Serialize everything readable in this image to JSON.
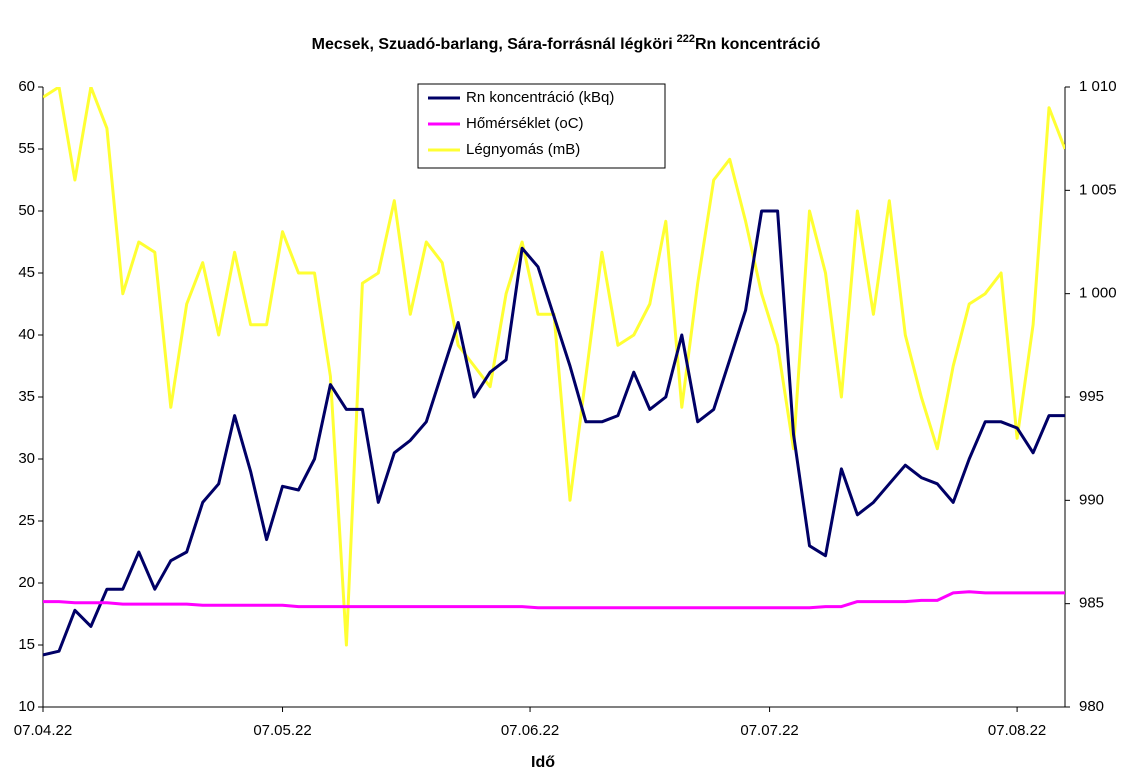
{
  "chart_data": {
    "type": "line",
    "title": "Mecsek, Szuadó-barlang, Sára-forrásnál légköri",
    "title_sup": "222",
    "title_rest": "Rn koncentráció",
    "x_label": "Idő",
    "x": [
      0,
      2,
      4,
      6,
      8,
      10,
      12,
      14,
      16,
      18,
      20,
      22,
      24,
      26,
      28,
      30,
      32,
      34,
      36,
      38,
      40,
      42,
      44,
      46,
      48,
      50,
      52,
      54,
      56,
      58,
      60,
      62,
      64,
      66,
      68,
      70,
      72,
      74,
      76,
      78,
      80,
      82,
      84,
      86,
      88,
      90,
      92,
      94,
      96,
      98,
      100,
      102,
      104,
      106,
      108,
      110,
      112,
      114,
      116,
      118,
      120,
      122,
      124,
      126,
      128
    ],
    "xlim": [
      0,
      128
    ],
    "xticks": [
      {
        "value": 0,
        "label": "07.04.22"
      },
      {
        "value": 30,
        "label": "07.05.22"
      },
      {
        "value": 61,
        "label": "07.06.22"
      },
      {
        "value": 91,
        "label": "07.07.22"
      },
      {
        "value": 122,
        "label": "07.08.22"
      }
    ],
    "ylim": [
      10,
      60
    ],
    "yticks": [
      10,
      15,
      20,
      25,
      30,
      35,
      40,
      45,
      50,
      55,
      60
    ],
    "y2lim": [
      980,
      1010
    ],
    "y2ticks": [
      980,
      985,
      990,
      995,
      {
        "value": 1000,
        "label": "1 000"
      },
      {
        "value": 1005,
        "label": "1 005"
      },
      {
        "value": 1010,
        "label": "1 010"
      }
    ],
    "legend": "top-center",
    "series": [
      {
        "name": "Rn koncentráció (kBq)",
        "color": "#000066",
        "values": [
          14.2,
          14.5,
          17.8,
          16.5,
          19.5,
          19.5,
          22.5,
          19.5,
          21.8,
          22.5,
          26.5,
          28,
          33.5,
          29,
          23.5,
          27.8,
          27.5,
          30,
          36,
          34,
          34,
          26.5,
          30.5,
          31.5,
          33,
          37,
          41,
          35,
          37,
          38,
          47,
          45.5,
          41.5,
          37.5,
          33,
          33,
          33.5,
          37,
          34,
          35,
          40,
          33,
          34,
          38,
          42,
          50,
          50,
          32,
          23,
          22.2,
          29.2,
          25.5,
          26.5,
          28,
          29.5,
          28.5,
          28,
          26.5,
          30,
          33,
          33,
          32.5,
          30.5,
          33.5,
          33.5
        ]
      },
      {
        "name": "Hőmérséklet (oC)",
        "color": "#ff00ff",
        "values": [
          18.5,
          18.5,
          18.4,
          18.4,
          18.4,
          18.3,
          18.3,
          18.3,
          18.3,
          18.3,
          18.2,
          18.2,
          18.2,
          18.2,
          18.2,
          18.2,
          18.1,
          18.1,
          18.1,
          18.1,
          18.1,
          18.1,
          18.1,
          18.1,
          18.1,
          18.1,
          18.1,
          18.1,
          18.1,
          18.1,
          18.1,
          18,
          18,
          18,
          18,
          18,
          18,
          18,
          18,
          18,
          18,
          18,
          18,
          18,
          18,
          18,
          18,
          18,
          18,
          18.1,
          18.1,
          18.5,
          18.5,
          18.5,
          18.5,
          18.6,
          18.6,
          19.2,
          19.3,
          19.2,
          19.2,
          19.2,
          19.2,
          19.2,
          19.2
        ]
      },
      {
        "name": "Légnyomás (mB)",
        "color": "#ffff33",
        "axis": "y2",
        "values": [
          1009.5,
          1010,
          1005.5,
          1010,
          1008,
          1000,
          1002.5,
          1002,
          994.5,
          999.5,
          1001.5,
          998,
          1002,
          998.5,
          998.5,
          1003,
          1001,
          1001,
          996,
          983,
          1000.5,
          1001,
          1004.5,
          999,
          1002.5,
          1001.5,
          997.5,
          996.5,
          995.5,
          1000,
          1002.5,
          999,
          999,
          990,
          996,
          1002,
          997.5,
          998,
          999.5,
          1003.5,
          994.5,
          1000.5,
          1005.5,
          1006.5,
          1003.5,
          1000,
          997.5,
          992.5,
          1004,
          1001,
          995,
          1004,
          999,
          1004.5,
          998,
          995,
          992.5,
          996.5,
          999.5,
          1000,
          1001,
          993,
          998.5,
          1009,
          1007
        ]
      }
    ]
  }
}
